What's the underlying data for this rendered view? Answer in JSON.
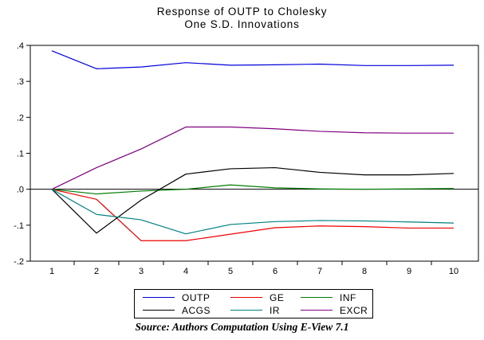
{
  "title": {
    "line1": "Response of OUTP to Cholesky",
    "line2": "One S.D. Innovations"
  },
  "source_note": "Source: Authors Computation Using E-View 7.1",
  "chart_data": {
    "type": "line",
    "title": "Response of OUTP to Cholesky One S.D. Innovations",
    "x": [
      1,
      2,
      3,
      4,
      5,
      6,
      7,
      8,
      9,
      10
    ],
    "x_tick_labels": [
      "1",
      "2",
      "3",
      "4",
      "5",
      "6",
      "7",
      "8",
      "9",
      "10"
    ],
    "y_tick_labels": [
      ".4",
      ".3",
      ".2",
      ".1",
      ".0",
      "-.1",
      "-.2"
    ],
    "y_tick_values": [
      0.4,
      0.3,
      0.2,
      0.1,
      0.0,
      -0.1,
      -0.2
    ],
    "ylim": [
      -0.2,
      0.4
    ],
    "zero_line": true,
    "grid": false,
    "legend_position": "bottom",
    "series": [
      {
        "name": "OUTP",
        "color": "#0000dd",
        "values": [
          0.385,
          0.335,
          0.34,
          0.352,
          0.345,
          0.346,
          0.348,
          0.344,
          0.344,
          0.345
        ]
      },
      {
        "name": "GE",
        "color": "#ee0000",
        "values": [
          0.0,
          -0.028,
          -0.143,
          -0.143,
          -0.125,
          -0.107,
          -0.102,
          -0.104,
          -0.108,
          -0.108
        ]
      },
      {
        "name": "INF",
        "color": "#007d00",
        "values": [
          0.0,
          -0.013,
          -0.005,
          0.0,
          0.012,
          0.004,
          0.001,
          0.0,
          0.001,
          0.002
        ]
      },
      {
        "name": "ACGS",
        "color": "#000000",
        "values": [
          0.0,
          -0.122,
          -0.03,
          0.042,
          0.057,
          0.06,
          0.047,
          0.04,
          0.04,
          0.044
        ]
      },
      {
        "name": "IR",
        "color": "#008080",
        "values": [
          0.0,
          -0.07,
          -0.085,
          -0.124,
          -0.098,
          -0.09,
          -0.087,
          -0.088,
          -0.091,
          -0.094
        ]
      },
      {
        "name": "EXCR",
        "color": "#800080",
        "values": [
          0.0,
          0.06,
          0.112,
          0.173,
          0.173,
          0.168,
          0.161,
          0.157,
          0.156,
          0.156
        ]
      }
    ]
  }
}
